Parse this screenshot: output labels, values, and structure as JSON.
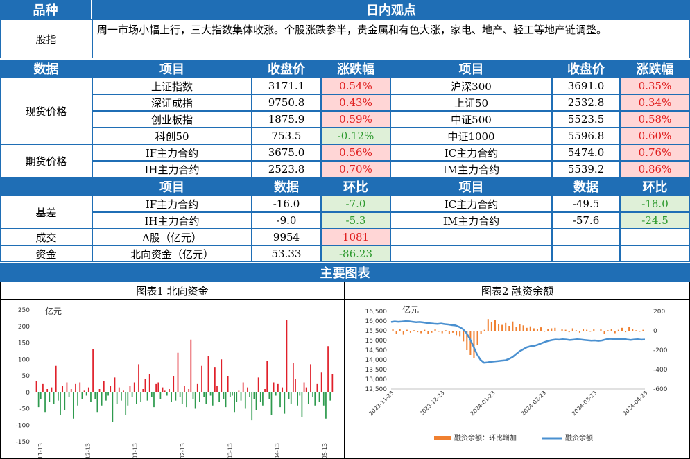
{
  "top": {
    "col1": "品种",
    "col2": "日内观点"
  },
  "index_row": {
    "label": "股指",
    "text": "周一市场小幅上行，三大指数集体收涨。个股涨跌参半，贵金属和有色大涨，家电、地产、轻工等地产链调整。"
  },
  "table1": {
    "headers": [
      "数据",
      "项目",
      "收盘价",
      "涨跌幅",
      "项目",
      "收盘价",
      "涨跌幅"
    ],
    "spot_label": "现货价格",
    "futures_label": "期货价格",
    "rows": [
      [
        "上证指数",
        "3171.1",
        "0.54%",
        "沪深300",
        "3691.0",
        "0.35%"
      ],
      [
        "深证成指",
        "9750.8",
        "0.43%",
        "上证50",
        "2532.8",
        "0.34%"
      ],
      [
        "创业板指",
        "1875.9",
        "0.59%",
        "中证500",
        "5523.5",
        "0.58%"
      ],
      [
        "科创50",
        "753.5",
        "-0.12%",
        "中证1000",
        "5596.8",
        "0.60%"
      ],
      [
        "IF主力合约",
        "3675.0",
        "0.56%",
        "IC主力合约",
        "5474.0",
        "0.76%"
      ],
      [
        "IH主力合约",
        "2523.8",
        "0.70%",
        "IM主力合约",
        "5539.2",
        "0.86%"
      ]
    ]
  },
  "table2": {
    "headers": [
      "项目",
      "数据",
      "环比",
      "项目",
      "数据",
      "环比"
    ],
    "basis_label": "基差",
    "volume_label": "成交",
    "fund_label": "资金",
    "rows": [
      [
        "IF主力合约",
        "-16.0",
        "-7.0",
        "IC主力合约",
        "-49.5",
        "-18.0"
      ],
      [
        "IH主力合约",
        "-9.0",
        "-5.3",
        "IM主力合约",
        "-57.6",
        "-24.5"
      ],
      [
        "A股（亿元）",
        "9954",
        "1081",
        "",
        "",
        ""
      ],
      [
        "北向资金（亿元）",
        "53.33",
        "-86.23",
        "",
        "",
        ""
      ]
    ]
  },
  "main_charts_title": "主要图表",
  "chart_data": [
    {
      "type": "bar",
      "title": "图表1  北向资金",
      "ylabel": "亿元",
      "ylim": [
        -150,
        250
      ],
      "yticks": [
        "250",
        "200",
        "150",
        "100",
        "50",
        "0",
        "-50",
        "-100",
        "-150"
      ],
      "x_tick_labels": [
        "2023-11-13",
        "2023-12-13",
        "2024-01-13",
        "2024-02-13",
        "2024-03-13",
        "2024-04-13",
        "2024-05-13"
      ],
      "pos_color": "#e0202a",
      "neg_color": "#2e9a4e",
      "values": [
        35,
        -45,
        -20,
        25,
        -60,
        10,
        -30,
        15,
        -35,
        80,
        -25,
        -70,
        20,
        -55,
        30,
        -15,
        10,
        -80,
        25,
        -40,
        30,
        -20,
        5,
        -10,
        15,
        -30,
        130,
        -20,
        -60,
        10,
        -40,
        35,
        -25,
        -10,
        20,
        -90,
        45,
        -35,
        15,
        -25,
        5,
        -70,
        -40,
        20,
        -15,
        30,
        -35,
        85,
        -30,
        10,
        40,
        -25,
        55,
        -15,
        -45,
        25,
        30,
        -20,
        15,
        5,
        -10,
        10,
        -30,
        50,
        -25,
        120,
        -15,
        -35,
        20,
        -45,
        10,
        160,
        -20,
        -50,
        25,
        -30,
        80,
        -15,
        -35,
        110,
        -10,
        -40,
        75,
        20,
        -30,
        100,
        -20,
        -45,
        50,
        -15,
        -10,
        -60,
        -30,
        5,
        -25,
        30,
        -50,
        15,
        -15,
        -85,
        -20,
        -55,
        45,
        -30,
        -40,
        10,
        95,
        -20,
        -70,
        30,
        -10,
        25,
        -45,
        15,
        -65,
        220,
        -20,
        -35,
        90,
        40,
        -40,
        -10,
        -75,
        30,
        15,
        -35,
        85,
        -15,
        -40,
        25,
        -30,
        60,
        -40,
        -80,
        140,
        -25,
        55
      ]
    },
    {
      "type": "line",
      "title": "图表2  融资余额",
      "ylabel": "亿元",
      "ylim": [
        12500,
        16500
      ],
      "ylim_right": [
        -600,
        200
      ],
      "yticks": [
        "16,500",
        "16,000",
        "15,500",
        "15,000",
        "14,500",
        "14,000",
        "13,500",
        "13,000",
        "12,500"
      ],
      "yticks_right": [
        "200",
        "0",
        "-200",
        "-400",
        "-600"
      ],
      "x_tick_labels": [
        "2023-11-23",
        "2023-12-23",
        "2024-01-23",
        "2024-02-23",
        "2024-03-23",
        "2024-04-23"
      ],
      "legend": [
        "融资余额：环比增加",
        "融资余额"
      ],
      "bar_color": "#f08030",
      "line_color": "#4a90d0",
      "line_values": [
        15950,
        15980,
        15960,
        15970,
        15990,
        15985,
        15960,
        15940,
        15950,
        15930,
        15900,
        15880,
        15860,
        15850,
        15870,
        15840,
        15820,
        15790,
        15770,
        15700,
        15600,
        15400,
        15100,
        14700,
        14300,
        14000,
        13850,
        13870,
        13900,
        13920,
        13940,
        13960,
        13980,
        14050,
        14150,
        14300,
        14450,
        14550,
        14650,
        14700,
        14720,
        14780,
        14850,
        14920,
        14980,
        15020,
        15050,
        15040,
        15060,
        15050,
        15020,
        15040,
        15060,
        15050,
        15030,
        15010,
        14990,
        15000,
        14980,
        15000,
        15050,
        15090,
        15080,
        15070,
        15060,
        15080,
        15050,
        15030,
        15050,
        15060,
        15040,
        15050
      ],
      "bar_values": [
        20,
        -30,
        15,
        -40,
        10,
        -20,
        5,
        -15,
        -25,
        10,
        -30,
        -20,
        15,
        -10,
        -25,
        5,
        -35,
        -20,
        -45,
        -60,
        -110,
        -200,
        -250,
        -280,
        -150,
        -30,
        10,
        120,
        90,
        110,
        70,
        60,
        80,
        50,
        95,
        40,
        70,
        55,
        30,
        45,
        25,
        20,
        35,
        -10,
        15,
        25,
        30,
        -5,
        20,
        10,
        -15,
        25,
        5,
        -20,
        15,
        10,
        -10,
        20,
        -5,
        15,
        -30,
        5,
        20,
        -25,
        10,
        30,
        -15,
        40,
        20,
        5,
        -10,
        10
      ]
    }
  ]
}
